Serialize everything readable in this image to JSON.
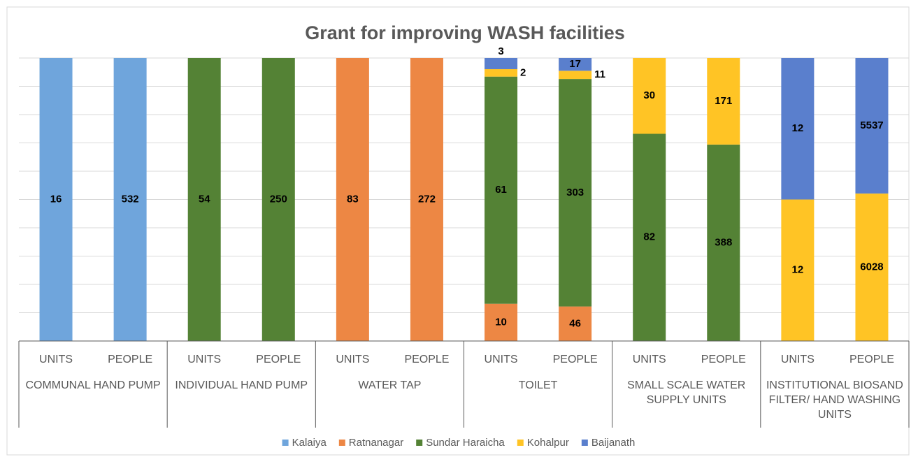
{
  "chart_data": {
    "type": "stacked_percent_bar",
    "title": "Grant for improving WASH facilities",
    "categories": [
      "UNITS",
      "PEOPLE",
      "UNITS",
      "PEOPLE",
      "UNITS",
      "PEOPLE",
      "UNITS",
      "PEOPLE",
      "UNITS",
      "PEOPLE",
      "UNITS",
      "PEOPLE"
    ],
    "groups": [
      "COMMUNAL HAND PUMP",
      "INDIVIDUAL HAND PUMP",
      "WATER TAP",
      "TOILET",
      "SMALL SCALE WATER SUPPLY UNITS",
      "INSTITUTIONAL BIOSAND FILTER/ HAND WASHING UNITS"
    ],
    "series": [
      {
        "name": "Kalaiya",
        "color": "#6fa5dc",
        "values": [
          16,
          532,
          null,
          null,
          null,
          null,
          null,
          null,
          null,
          null,
          null,
          null
        ]
      },
      {
        "name": "Ratnanagar",
        "color": "#ed8744",
        "values": [
          null,
          null,
          null,
          null,
          83,
          272,
          10,
          46,
          null,
          null,
          null,
          null
        ]
      },
      {
        "name": "Sundar Haraicha",
        "color": "#548235",
        "values": [
          null,
          null,
          54,
          250,
          null,
          null,
          61,
          303,
          82,
          388,
          null,
          null
        ]
      },
      {
        "name": "Kohalpur",
        "color": "#ffc425",
        "values": [
          null,
          null,
          null,
          null,
          null,
          null,
          2,
          11,
          30,
          171,
          12,
          6028
        ]
      },
      {
        "name": "Baijanath",
        "color": "#5a7fcd",
        "values": [
          null,
          null,
          null,
          null,
          null,
          null,
          3,
          17,
          null,
          null,
          12,
          5537
        ]
      }
    ],
    "ylim": [
      0,
      100
    ],
    "yticks": [
      0,
      10,
      20,
      30,
      40,
      50,
      60,
      70,
      80,
      90,
      100
    ],
    "grid": true
  }
}
